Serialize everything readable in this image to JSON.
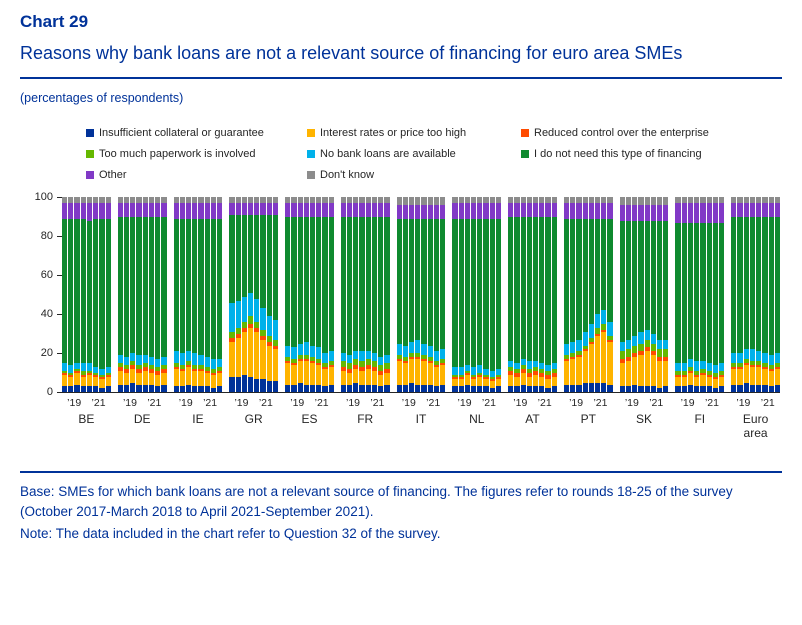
{
  "header": {
    "chart_label": "Chart 29",
    "title": "Reasons why bank loans are not a relevant source of financing for euro area SMEs",
    "subtitle": "(percentages of respondents)"
  },
  "footer": {
    "base": "Base: SMEs for which bank loans are not a relevant source of financing. The figures refer to rounds 18-25 of the survey (October 2017-March 2018 to April 2021-September 2021).",
    "note": "Note: The data included in the chart refer to Question 32 of the survey."
  },
  "chart_data": {
    "type": "bar",
    "stacked": true,
    "unit": "percentages of respondents",
    "title": "Reasons why bank loans are not a relevant source of financing for euro area SMEs",
    "ylim": [
      0,
      100
    ],
    "yticks": [
      0,
      20,
      40,
      60,
      80,
      100
    ],
    "grid": false,
    "legend_position": "top",
    "series_labels": [
      "Insufficient collateral or guarantee",
      "Interest rates or price too high",
      "Reduced control over the enterprise",
      "Too much paperwork is involved",
      "No bank loans are available",
      "I do not need this type of financing",
      "Other",
      "Don't know"
    ],
    "series_colors": [
      "#003299",
      "#FFB400",
      "#FF4B00",
      "#65B800",
      "#00B1EA",
      "#0F8A2F",
      "#8139C6",
      "#8C8C8C"
    ],
    "rounds_note": "rounds 18-25",
    "round_tick_labels": [
      "’19",
      "’21"
    ],
    "groups": [
      {
        "label": "BE",
        "bars": [
          [
            3,
            6,
            1,
            1,
            4,
            74,
            8,
            3
          ],
          [
            3,
            5,
            1,
            1,
            4,
            75,
            8,
            3
          ],
          [
            4,
            6,
            1,
            1,
            3,
            74,
            8,
            3
          ],
          [
            3,
            5,
            1,
            2,
            4,
            74,
            8,
            3
          ],
          [
            3,
            6,
            1,
            1,
            4,
            73,
            9,
            3
          ],
          [
            3,
            5,
            1,
            1,
            3,
            76,
            8,
            3
          ],
          [
            2,
            5,
            1,
            1,
            3,
            77,
            8,
            3
          ],
          [
            3,
            5,
            1,
            1,
            3,
            76,
            8,
            3
          ]
        ]
      },
      {
        "label": "DE",
        "bars": [
          [
            4,
            7,
            2,
            2,
            4,
            71,
            7,
            3
          ],
          [
            4,
            6,
            2,
            2,
            4,
            72,
            7,
            3
          ],
          [
            5,
            7,
            2,
            2,
            4,
            70,
            7,
            3
          ],
          [
            4,
            6,
            2,
            2,
            5,
            71,
            7,
            3
          ],
          [
            4,
            7,
            2,
            2,
            4,
            71,
            7,
            3
          ],
          [
            4,
            6,
            2,
            2,
            4,
            72,
            7,
            3
          ],
          [
            3,
            6,
            2,
            2,
            4,
            73,
            7,
            3
          ],
          [
            4,
            6,
            2,
            2,
            4,
            72,
            7,
            3
          ]
        ]
      },
      {
        "label": "IE",
        "bars": [
          [
            3,
            9,
            1,
            2,
            6,
            68,
            8,
            3
          ],
          [
            3,
            8,
            1,
            2,
            6,
            69,
            8,
            3
          ],
          [
            4,
            9,
            1,
            2,
            5,
            68,
            8,
            3
          ],
          [
            3,
            8,
            1,
            2,
            6,
            69,
            8,
            3
          ],
          [
            3,
            8,
            1,
            2,
            5,
            70,
            8,
            3
          ],
          [
            3,
            7,
            1,
            2,
            5,
            71,
            8,
            3
          ],
          [
            2,
            7,
            1,
            2,
            5,
            72,
            8,
            3
          ],
          [
            3,
            7,
            1,
            2,
            4,
            72,
            8,
            3
          ]
        ]
      },
      {
        "label": "GR",
        "bars": [
          [
            8,
            18,
            2,
            3,
            15,
            45,
            6,
            3
          ],
          [
            8,
            20,
            2,
            3,
            14,
            44,
            6,
            3
          ],
          [
            9,
            22,
            2,
            3,
            13,
            42,
            6,
            3
          ],
          [
            8,
            25,
            2,
            4,
            12,
            40,
            6,
            3
          ],
          [
            7,
            24,
            2,
            3,
            12,
            43,
            6,
            3
          ],
          [
            7,
            20,
            2,
            3,
            11,
            48,
            6,
            3
          ],
          [
            6,
            18,
            2,
            3,
            10,
            52,
            6,
            3
          ],
          [
            6,
            16,
            2,
            3,
            10,
            54,
            6,
            3
          ]
        ]
      },
      {
        "label": "ES",
        "bars": [
          [
            4,
            11,
            1,
            2,
            6,
            66,
            7,
            3
          ],
          [
            4,
            10,
            1,
            2,
            6,
            67,
            7,
            3
          ],
          [
            5,
            11,
            1,
            2,
            6,
            65,
            7,
            3
          ],
          [
            4,
            12,
            1,
            2,
            7,
            64,
            7,
            3
          ],
          [
            4,
            11,
            1,
            2,
            6,
            66,
            7,
            3
          ],
          [
            4,
            10,
            1,
            2,
            6,
            67,
            7,
            3
          ],
          [
            3,
            9,
            1,
            2,
            5,
            70,
            7,
            3
          ],
          [
            4,
            9,
            1,
            2,
            5,
            69,
            7,
            3
          ]
        ]
      },
      {
        "label": "FR",
        "bars": [
          [
            4,
            7,
            2,
            3,
            4,
            70,
            7,
            3
          ],
          [
            4,
            6,
            2,
            3,
            4,
            71,
            7,
            3
          ],
          [
            5,
            7,
            2,
            3,
            4,
            69,
            7,
            3
          ],
          [
            4,
            7,
            2,
            3,
            5,
            69,
            7,
            3
          ],
          [
            4,
            8,
            2,
            3,
            4,
            69,
            7,
            3
          ],
          [
            4,
            7,
            2,
            3,
            4,
            70,
            7,
            3
          ],
          [
            3,
            6,
            2,
            3,
            4,
            72,
            7,
            3
          ],
          [
            4,
            6,
            2,
            3,
            4,
            71,
            7,
            3
          ]
        ]
      },
      {
        "label": "IT",
        "bars": [
          [
            4,
            12,
            1,
            2,
            6,
            64,
            7,
            4
          ],
          [
            4,
            11,
            1,
            2,
            6,
            65,
            7,
            4
          ],
          [
            5,
            12,
            1,
            2,
            6,
            63,
            7,
            4
          ],
          [
            4,
            13,
            1,
            2,
            7,
            62,
            7,
            4
          ],
          [
            4,
            12,
            1,
            2,
            6,
            64,
            7,
            4
          ],
          [
            4,
            11,
            1,
            2,
            6,
            65,
            7,
            4
          ],
          [
            3,
            10,
            1,
            2,
            5,
            68,
            7,
            4
          ],
          [
            4,
            10,
            1,
            2,
            5,
            67,
            7,
            4
          ]
        ]
      },
      {
        "label": "NL",
        "bars": [
          [
            3,
            4,
            1,
            1,
            4,
            76,
            8,
            3
          ],
          [
            3,
            4,
            1,
            1,
            4,
            76,
            8,
            3
          ],
          [
            4,
            5,
            1,
            1,
            3,
            75,
            8,
            3
          ],
          [
            3,
            4,
            1,
            1,
            4,
            76,
            8,
            3
          ],
          [
            3,
            5,
            1,
            1,
            4,
            75,
            8,
            3
          ],
          [
            3,
            4,
            1,
            1,
            3,
            77,
            8,
            3
          ],
          [
            2,
            4,
            1,
            1,
            3,
            78,
            8,
            3
          ],
          [
            3,
            4,
            1,
            1,
            3,
            77,
            8,
            3
          ]
        ]
      },
      {
        "label": "AT",
        "bars": [
          [
            3,
            6,
            2,
            2,
            3,
            74,
            7,
            3
          ],
          [
            3,
            5,
            2,
            2,
            3,
            75,
            7,
            3
          ],
          [
            4,
            6,
            2,
            2,
            3,
            73,
            7,
            3
          ],
          [
            3,
            5,
            2,
            2,
            4,
            74,
            7,
            3
          ],
          [
            3,
            6,
            2,
            2,
            3,
            74,
            7,
            3
          ],
          [
            3,
            5,
            2,
            2,
            3,
            75,
            7,
            3
          ],
          [
            2,
            5,
            2,
            2,
            3,
            76,
            7,
            3
          ],
          [
            3,
            5,
            2,
            2,
            3,
            75,
            7,
            3
          ]
        ]
      },
      {
        "label": "PT",
        "bars": [
          [
            4,
            12,
            1,
            2,
            6,
            64,
            8,
            3
          ],
          [
            4,
            13,
            1,
            2,
            6,
            63,
            8,
            3
          ],
          [
            4,
            14,
            1,
            2,
            6,
            62,
            8,
            3
          ],
          [
            5,
            16,
            1,
            2,
            7,
            58,
            8,
            3
          ],
          [
            5,
            20,
            1,
            2,
            7,
            54,
            8,
            3
          ],
          [
            5,
            24,
            1,
            3,
            7,
            49,
            8,
            3
          ],
          [
            5,
            26,
            1,
            3,
            7,
            47,
            8,
            3
          ],
          [
            4,
            22,
            1,
            2,
            7,
            53,
            8,
            3
          ]
        ]
      },
      {
        "label": "SK",
        "bars": [
          [
            3,
            12,
            2,
            4,
            5,
            62,
            8,
            4
          ],
          [
            3,
            13,
            2,
            4,
            5,
            61,
            8,
            4
          ],
          [
            4,
            14,
            2,
            4,
            5,
            59,
            8,
            4
          ],
          [
            3,
            16,
            2,
            4,
            6,
            57,
            8,
            4
          ],
          [
            3,
            18,
            2,
            4,
            5,
            56,
            8,
            4
          ],
          [
            3,
            16,
            2,
            4,
            5,
            58,
            8,
            4
          ],
          [
            2,
            14,
            2,
            4,
            5,
            61,
            8,
            4
          ],
          [
            3,
            13,
            2,
            4,
            5,
            61,
            8,
            4
          ]
        ]
      },
      {
        "label": "FI",
        "bars": [
          [
            3,
            5,
            1,
            2,
            4,
            72,
            10,
            3
          ],
          [
            3,
            5,
            1,
            2,
            4,
            72,
            10,
            3
          ],
          [
            4,
            6,
            1,
            2,
            4,
            70,
            10,
            3
          ],
          [
            3,
            5,
            1,
            2,
            5,
            71,
            10,
            3
          ],
          [
            3,
            6,
            1,
            2,
            4,
            71,
            10,
            3
          ],
          [
            3,
            5,
            1,
            2,
            4,
            72,
            10,
            3
          ],
          [
            2,
            5,
            1,
            2,
            4,
            73,
            10,
            3
          ],
          [
            3,
            5,
            1,
            2,
            4,
            72,
            10,
            3
          ]
        ]
      },
      {
        "label": "Euro area",
        "bars": [
          [
            4,
            8,
            1,
            2,
            5,
            70,
            7,
            3
          ],
          [
            4,
            8,
            1,
            2,
            5,
            70,
            7,
            3
          ],
          [
            5,
            9,
            1,
            2,
            5,
            68,
            7,
            3
          ],
          [
            4,
            9,
            1,
            2,
            6,
            68,
            7,
            3
          ],
          [
            4,
            9,
            1,
            2,
            5,
            69,
            7,
            3
          ],
          [
            4,
            8,
            1,
            2,
            5,
            70,
            7,
            3
          ],
          [
            3,
            8,
            1,
            2,
            5,
            71,
            7,
            3
          ],
          [
            4,
            8,
            1,
            2,
            5,
            70,
            7,
            3
          ]
        ]
      }
    ]
  }
}
